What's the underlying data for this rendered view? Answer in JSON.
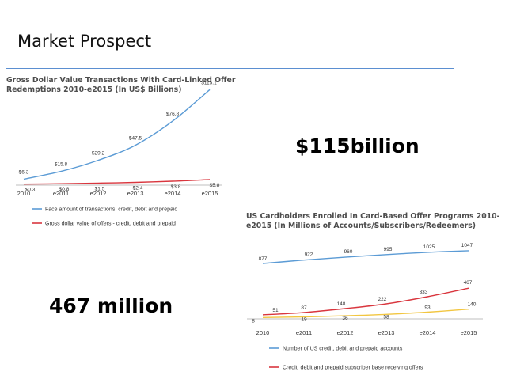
{
  "slide": {
    "title": "Market Prospect"
  },
  "highlights": {
    "top": "$115billion",
    "bottom": "467 million"
  },
  "colors": {
    "blue": "#5b9bd5",
    "red": "#d9363e",
    "yellow": "#f2c641",
    "rule": "#5b8fd1"
  },
  "chart_data": [
    {
      "type": "line",
      "title": "Gross Dollar Value Transactions With Card-Linked Offer Redemptions 2010-e2015 (In US$ Billions)",
      "categories": [
        "2010",
        "e2011",
        "e2012",
        "e2013",
        "e2014",
        "e2015"
      ],
      "series": [
        {
          "name": "Face amount of transactions, credit, debit and prepaid",
          "values": [
            6.3,
            15.8,
            29.2,
            47.5,
            76.8,
            115.1
          ],
          "labels": [
            "$6.3",
            "$15.8",
            "$29.2",
            "$47.5",
            "$76.8",
            "$115.1"
          ],
          "color": "#5b9bd5"
        },
        {
          "name": "Gross dollar value of offers - credit, debit and prepaid",
          "values": [
            0.3,
            0.8,
            1.5,
            2.4,
            3.8,
            5.8
          ],
          "labels": [
            "$0.3",
            "$0.8",
            "$1.5",
            "$2.4",
            "$3.8",
            "$5.8"
          ],
          "color": "#d9363e"
        }
      ],
      "ylim": [
        0,
        120
      ],
      "grid": false,
      "legend": "bottom"
    },
    {
      "type": "line",
      "title": "US Cardholders Enrolled In Card-Based Offer Programs 2010-e2015 (In Millions of Accounts/Subscribers/Redeemers)",
      "categories": [
        "2010",
        "e2011",
        "e2012",
        "e2013",
        "e2014",
        "e2015"
      ],
      "series": [
        {
          "name": "Number of US credit, debit and prepaid accounts",
          "values": [
            877,
            922,
            960,
            995,
            1025,
            1047
          ],
          "labels": [
            "877",
            "922",
            "960",
            "995",
            "1025",
            "1047"
          ],
          "color": "#5b9bd5"
        },
        {
          "name": "Credit, debit and prepaid subscriber base receiving offers",
          "values": [
            51,
            87,
            148,
            222,
            333,
            467
          ],
          "labels": [
            "51",
            "87",
            "148",
            "222",
            "333",
            "467"
          ],
          "color": "#d9363e"
        },
        {
          "values": [
            8,
            19,
            36,
            58,
            93,
            140
          ],
          "labels": [
            "8",
            "19",
            "36",
            "58",
            "93",
            "140"
          ],
          "color": "#f2c641"
        }
      ],
      "grid": false,
      "legend": "bottom"
    }
  ]
}
